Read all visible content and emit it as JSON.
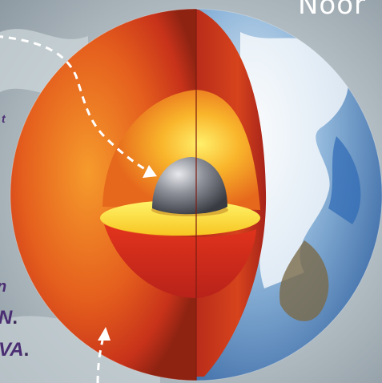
{
  "header": {
    "title_fragment": "Noor"
  },
  "left_labels": {
    "line1": "t",
    "line2": "n",
    "line3": "N",
    "line4": "VA",
    "dot": "."
  },
  "colors": {
    "text_purple": "#4a2d72",
    "crust_red": "#e2571d",
    "mantle_orange": "#f4a21f",
    "inner_yellow": "#fff25a",
    "core_grey": "#6c6f78",
    "earth_blue": "#3a76c0",
    "sky": "#b9c3c8"
  },
  "icons": [
    "dashed-arrow-icon"
  ]
}
